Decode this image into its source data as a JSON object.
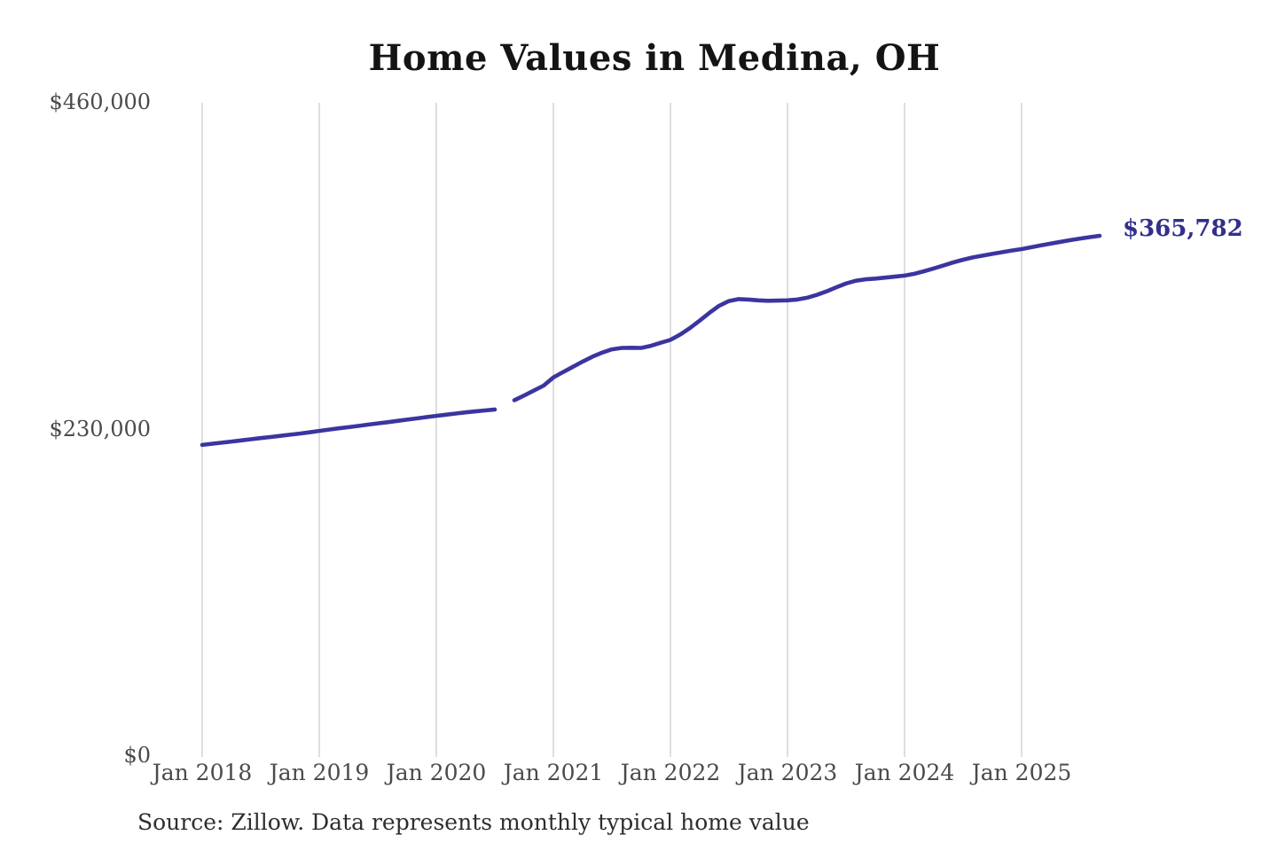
{
  "title": "Home Values in Medina, OH",
  "source_note": "Source: Zillow. Data represents monthly typical home value",
  "colors": {
    "line": "#3b35a0",
    "end_label": "#332f8c",
    "grid": "#cccccc",
    "axis_text": "#4a4a4a",
    "title_text": "#141414",
    "source_text": "#2e2e2e",
    "background": "#ffffff"
  },
  "chart_data": {
    "type": "line",
    "title": "Home Values in Medina, OH",
    "xlabel": "",
    "ylabel": "",
    "ylim": [
      0,
      460000
    ],
    "grid": "vertical-only",
    "legend": "none",
    "end_label": "$365,782",
    "end_value": 365782,
    "gap_months": [
      "2020-08"
    ],
    "y_ticks": [
      {
        "label": "$0",
        "value": 0
      },
      {
        "label": "$230,000",
        "value": 230000
      },
      {
        "label": "$460,000",
        "value": 460000
      }
    ],
    "x_ticks": [
      {
        "label": "Jan 2018",
        "month": "2018-01"
      },
      {
        "label": "Jan 2019",
        "month": "2019-01"
      },
      {
        "label": "Jan 2020",
        "month": "2020-01"
      },
      {
        "label": "Jan 2021",
        "month": "2021-01"
      },
      {
        "label": "Jan 2022",
        "month": "2022-01"
      },
      {
        "label": "Jan 2023",
        "month": "2023-01"
      },
      {
        "label": "Jan 2024",
        "month": "2024-01"
      },
      {
        "label": "Jan 2025",
        "month": "2025-01"
      }
    ],
    "series": [
      {
        "name": "Monthly typical home value",
        "start_month": "2018-01",
        "interval": "monthly",
        "values": [
          218500,
          219300,
          220100,
          220900,
          221700,
          222500,
          223300,
          224100,
          224900,
          225700,
          226500,
          227400,
          228400,
          229300,
          230200,
          231000,
          231900,
          232800,
          233700,
          234500,
          235400,
          236300,
          237200,
          238100,
          239000,
          239800,
          240600,
          241400,
          242100,
          242800,
          243500,
          null,
          250000,
          253300,
          256800,
          260300,
          266000,
          269800,
          273500,
          277200,
          280600,
          283500,
          285800,
          286800,
          286900,
          286800,
          288300,
          290400,
          292500,
          296200,
          300800,
          306000,
          311500,
          316500,
          319800,
          321200,
          320900,
          320300,
          320000,
          320100,
          320300,
          320900,
          322100,
          324100,
          326600,
          329500,
          332200,
          334100,
          335100,
          335600,
          336300,
          337000,
          337700,
          339000,
          340800,
          342800,
          344900,
          347000,
          348900,
          350500,
          351800,
          353000,
          354200,
          355400,
          356400,
          357700,
          359000,
          360300,
          361500,
          362700,
          363800,
          364800,
          365782
        ]
      }
    ]
  }
}
